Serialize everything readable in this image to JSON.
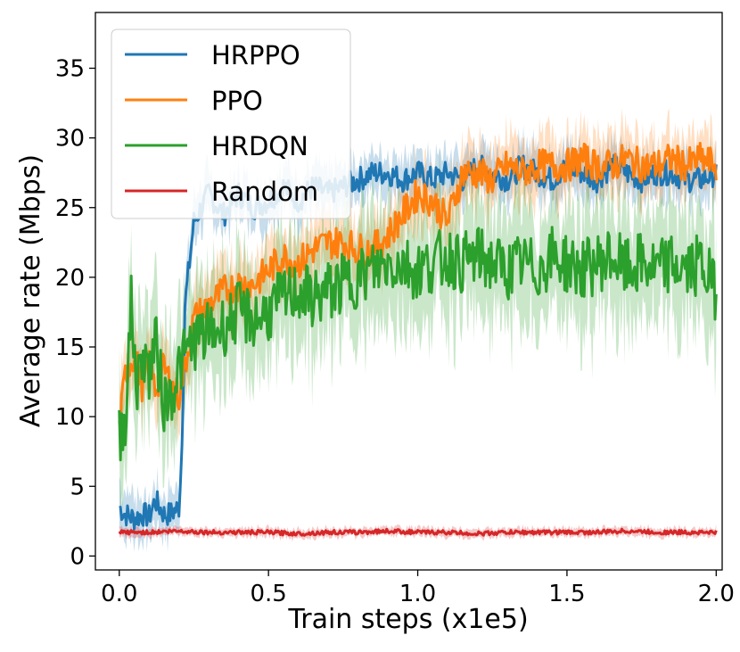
{
  "chart_data": {
    "type": "line",
    "title": "",
    "xlabel": "Train steps (x1e5)",
    "ylabel": "Average rate (Mbps)",
    "xlim": [
      -0.08,
      2.02
    ],
    "ylim": [
      -1.0,
      39.0
    ],
    "xticks": [
      0.0,
      0.5,
      1.0,
      1.5,
      2.0
    ],
    "xtick_labels": [
      "0.0",
      "0.5",
      "1.0",
      "1.5",
      "2.0"
    ],
    "yticks": [
      0,
      5,
      10,
      15,
      20,
      25,
      30,
      35
    ],
    "ytick_labels": [
      "0",
      "5",
      "10",
      "15",
      "20",
      "25",
      "30",
      "35"
    ],
    "grid": false,
    "legend_position": "top-left",
    "shaded_band": "variability range around each mean line",
    "series": [
      {
        "name": "HRPPO",
        "color": "#1f77b4",
        "x": [
          0.0,
          0.02,
          0.05,
          0.08,
          0.1,
          0.12,
          0.15,
          0.17,
          0.2,
          0.21,
          0.22,
          0.25,
          0.3,
          0.35,
          0.4,
          0.45,
          0.5,
          0.55,
          0.6,
          0.65,
          0.7,
          0.75,
          0.8,
          0.85,
          0.9,
          0.95,
          1.0,
          1.05,
          1.1,
          1.15,
          1.2,
          1.25,
          1.3,
          1.35,
          1.4,
          1.45,
          1.5,
          1.55,
          1.6,
          1.65,
          1.7,
          1.75,
          1.8,
          1.85,
          1.9,
          1.95,
          2.0
        ],
        "y": [
          3.5,
          3.0,
          2.7,
          3.0,
          2.8,
          4.0,
          3.0,
          3.0,
          3.5,
          8.0,
          18.0,
          24.0,
          26.0,
          24.5,
          26.0,
          25.0,
          25.5,
          26.5,
          25.5,
          26.5,
          26.0,
          26.5,
          27.0,
          27.5,
          27.5,
          27.0,
          27.5,
          27.0,
          27.5,
          27.0,
          28.0,
          27.5,
          27.0,
          28.0,
          27.5,
          27.0,
          28.0,
          27.5,
          27.0,
          28.0,
          27.5,
          27.0,
          27.5,
          27.5,
          27.0,
          27.0,
          27.5
        ],
        "band": 1.5
      },
      {
        "name": "PPO",
        "color": "#ff7f0e",
        "x": [
          0.0,
          0.02,
          0.05,
          0.08,
          0.1,
          0.12,
          0.15,
          0.18,
          0.2,
          0.25,
          0.3,
          0.35,
          0.4,
          0.45,
          0.5,
          0.55,
          0.6,
          0.65,
          0.7,
          0.75,
          0.8,
          0.85,
          0.9,
          0.95,
          1.0,
          1.05,
          1.1,
          1.15,
          1.2,
          1.25,
          1.3,
          1.35,
          1.4,
          1.45,
          1.5,
          1.55,
          1.6,
          1.65,
          1.7,
          1.75,
          1.8,
          1.85,
          1.9,
          1.95,
          2.0
        ],
        "y": [
          9.0,
          13.0,
          14.5,
          12.0,
          14.0,
          12.0,
          13.5,
          12.0,
          11.5,
          17.0,
          18.0,
          19.0,
          19.5,
          19.5,
          20.5,
          21.5,
          21.0,
          22.0,
          22.5,
          22.5,
          22.0,
          22.0,
          23.0,
          24.5,
          26.0,
          25.5,
          24.0,
          27.5,
          27.5,
          27.0,
          28.0,
          27.5,
          28.0,
          28.0,
          28.0,
          28.5,
          28.0,
          28.0,
          28.5,
          28.0,
          28.0,
          28.5,
          28.0,
          28.5,
          28.0
        ],
        "band": 2.0
      },
      {
        "name": "HRDQN",
        "color": "#2ca02c",
        "x": [
          0.0,
          0.02,
          0.04,
          0.06,
          0.08,
          0.1,
          0.12,
          0.15,
          0.18,
          0.2,
          0.25,
          0.3,
          0.35,
          0.4,
          0.45,
          0.5,
          0.55,
          0.6,
          0.65,
          0.7,
          0.75,
          0.8,
          0.85,
          0.9,
          0.95,
          1.0,
          1.05,
          1.1,
          1.15,
          1.2,
          1.25,
          1.3,
          1.35,
          1.4,
          1.45,
          1.5,
          1.55,
          1.6,
          1.65,
          1.7,
          1.75,
          1.8,
          1.85,
          1.9,
          1.95,
          2.0
        ],
        "y": [
          8.5,
          10.0,
          18.0,
          12.0,
          15.0,
          13.0,
          15.5,
          11.0,
          12.0,
          13.5,
          15.5,
          16.0,
          16.5,
          17.5,
          17.0,
          17.5,
          18.5,
          19.0,
          18.5,
          19.0,
          19.5,
          20.0,
          20.5,
          21.0,
          21.0,
          20.5,
          21.0,
          21.5,
          21.0,
          21.5,
          21.0,
          20.5,
          21.0,
          20.5,
          21.5,
          21.0,
          20.5,
          21.0,
          21.5,
          20.5,
          21.0,
          20.5,
          21.0,
          20.5,
          21.0,
          19.0
        ],
        "band": 4.0
      },
      {
        "name": "Random",
        "color": "#d62728",
        "x": [
          0.0,
          0.1,
          0.2,
          0.3,
          0.4,
          0.5,
          0.6,
          0.7,
          0.8,
          0.9,
          1.0,
          1.1,
          1.2,
          1.3,
          1.4,
          1.5,
          1.6,
          1.7,
          1.8,
          1.9,
          2.0
        ],
        "y": [
          1.7,
          1.7,
          1.8,
          1.7,
          1.7,
          1.7,
          1.6,
          1.7,
          1.7,
          1.8,
          1.7,
          1.7,
          1.6,
          1.7,
          1.7,
          1.7,
          1.7,
          1.8,
          1.7,
          1.7,
          1.7
        ],
        "band": 0.3
      }
    ]
  }
}
